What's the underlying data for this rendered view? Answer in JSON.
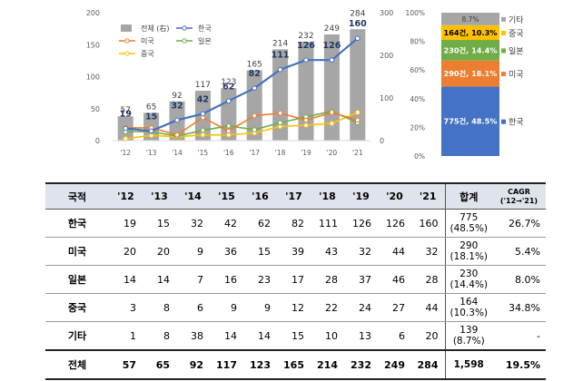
{
  "chart_data": [
    {
      "type": "bar",
      "categories": [
        "'12",
        "'13",
        "'14",
        "'15",
        "'16",
        "'17",
        "'18",
        "'19",
        "'20",
        "'21"
      ],
      "left_axis": {
        "ylim": [
          0,
          200
        ],
        "ticks": [
          "0",
          "50",
          "100",
          "150",
          "200"
        ]
      },
      "right_axis": {
        "ylim": [
          0,
          300
        ],
        "ticks": [
          "0",
          "100",
          "200",
          "300"
        ]
      },
      "legend": [
        "전체 (右)",
        "한국",
        "미국",
        "일본",
        "중국"
      ],
      "legend_placement": "top-left",
      "series": [
        {
          "name": "전체 (右)",
          "type": "bar",
          "axis": "right",
          "color": "#a6a6a6",
          "values": [
            57,
            65,
            92,
            117,
            123,
            165,
            214,
            232,
            249,
            284
          ]
        },
        {
          "name": "한국",
          "type": "line",
          "axis": "left",
          "color": "#4472c4",
          "values": [
            19,
            15,
            32,
            42,
            62,
            82,
            111,
            126,
            126,
            160
          ]
        },
        {
          "name": "미국",
          "type": "line",
          "axis": "left",
          "color": "#ed7d31",
          "values": [
            20,
            20,
            9,
            36,
            15,
            39,
            43,
            32,
            44,
            32
          ]
        },
        {
          "name": "일본",
          "type": "line",
          "axis": "left",
          "color": "#70ad47",
          "values": [
            14,
            14,
            7,
            16,
            23,
            17,
            28,
            37,
            46,
            28
          ]
        },
        {
          "name": "중국",
          "type": "line",
          "axis": "left",
          "color": "#ffc000",
          "values": [
            3,
            8,
            6,
            9,
            9,
            12,
            22,
            24,
            27,
            44
          ]
        }
      ]
    },
    {
      "type": "bar",
      "stacked": true,
      "ylim": [
        0,
        100
      ],
      "ticks": [
        "0%",
        "20%",
        "40%",
        "60%",
        "80%",
        "100%"
      ],
      "segments": [
        {
          "name": "한국",
          "label": "775건, 48.5%",
          "value": 48.5,
          "color": "#4472c4"
        },
        {
          "name": "미국",
          "label": "290건, 18.1%",
          "value": 18.1,
          "color": "#ed7d31"
        },
        {
          "name": "일본",
          "label": "230건, 14.4%",
          "value": 14.4,
          "color": "#70ad47"
        },
        {
          "name": "중국",
          "label": "164건, 10.3%",
          "value": 10.3,
          "color": "#ffc000"
        },
        {
          "name": "기타",
          "label": "8.7%",
          "value": 8.7,
          "color": "#a6a6a6"
        }
      ]
    }
  ],
  "table": {
    "headers": [
      "국적",
      "'12",
      "'13",
      "'14",
      "'15",
      "'16",
      "'17",
      "'18",
      "'19",
      "'20",
      "'21",
      "합계"
    ],
    "cagr_header": [
      "CAGR",
      "('12→'21)"
    ],
    "rows": [
      {
        "country": "한국",
        "values": [
          "19",
          "15",
          "32",
          "42",
          "62",
          "82",
          "111",
          "126",
          "126",
          "160"
        ],
        "total": "775",
        "share": "(48.5%)",
        "cagr": "26.7%"
      },
      {
        "country": "미국",
        "values": [
          "20",
          "20",
          "9",
          "36",
          "15",
          "39",
          "43",
          "32",
          "44",
          "32"
        ],
        "total": "290",
        "share": "(18.1%)",
        "cagr": "5.4%"
      },
      {
        "country": "일본",
        "values": [
          "14",
          "14",
          "7",
          "16",
          "23",
          "17",
          "28",
          "37",
          "46",
          "28"
        ],
        "total": "230",
        "share": "(14.4%)",
        "cagr": "8.0%"
      },
      {
        "country": "중국",
        "values": [
          "3",
          "8",
          "6",
          "9",
          "9",
          "12",
          "22",
          "24",
          "27",
          "44"
        ],
        "total": "164",
        "share": "(10.3%)",
        "cagr": "34.8%"
      },
      {
        "country": "기타",
        "values": [
          "1",
          "8",
          "38",
          "14",
          "14",
          "15",
          "10",
          "13",
          "6",
          "20"
        ],
        "total": "139",
        "share": "(8.7%)",
        "cagr": "-"
      },
      {
        "country": "전체",
        "values": [
          "57",
          "65",
          "92",
          "117",
          "123",
          "165",
          "214",
          "232",
          "249",
          "284"
        ],
        "total": "1,598",
        "share": "",
        "cagr": "19.5%"
      }
    ]
  }
}
